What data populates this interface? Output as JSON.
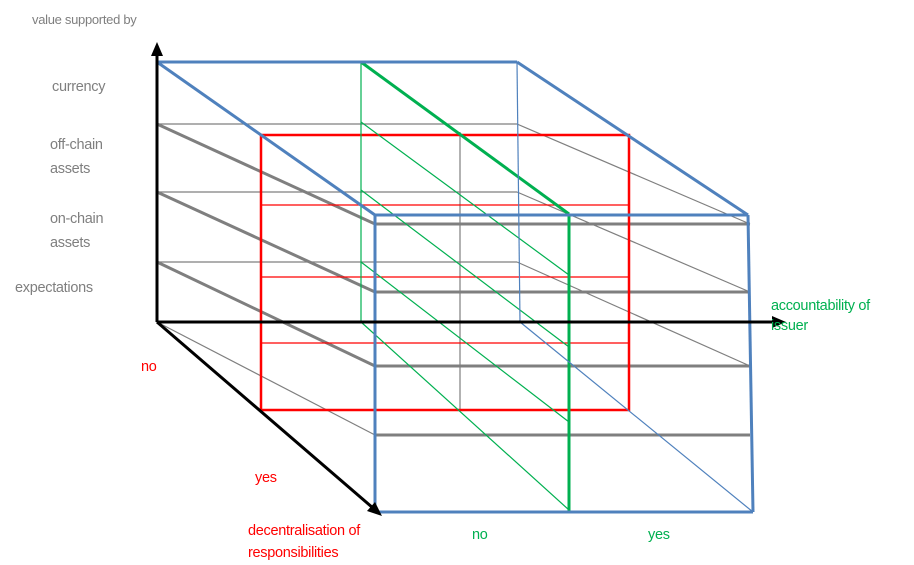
{
  "axes": {
    "vertical": {
      "title": "value supported by"
    },
    "horizontal": {
      "title_line1": "accountability of",
      "title_line2": "issuer"
    },
    "depth": {
      "title_line1": "decentralisation of",
      "title_line2": "responsibilities"
    }
  },
  "vertical_levels": [
    {
      "line1": "currency",
      "line2": ""
    },
    {
      "line1": "off-chain",
      "line2": "assets"
    },
    {
      "line1": "on-chain",
      "line2": "assets"
    },
    {
      "line1": "expectations",
      "line2": ""
    }
  ],
  "depth_values": {
    "front": "no",
    "back": "yes"
  },
  "horizontal_values": {
    "left": "no",
    "right": "yes"
  },
  "colors": {
    "cube_edges": "#4f81bd",
    "grid_lines": "#7f7f7f",
    "decentralisation_plane": "#ff0000",
    "accountability_plane": "#00b050",
    "axis_arrows": "#000000",
    "level_labels": "#7f7f7f"
  }
}
